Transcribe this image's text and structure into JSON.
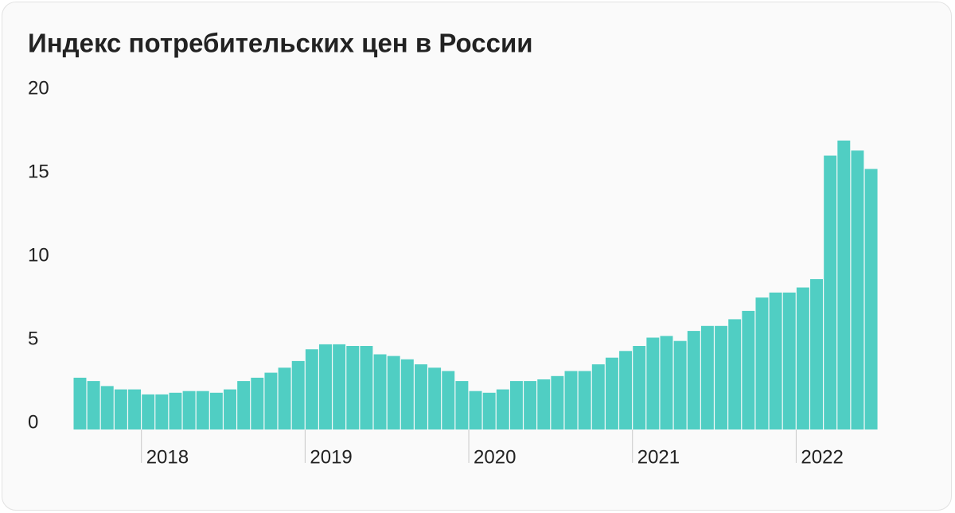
{
  "chart_data": {
    "type": "bar",
    "title": "Индекс потребительских цен в России",
    "categories": [
      null,
      null,
      null,
      null,
      null,
      "2018",
      null,
      null,
      null,
      null,
      null,
      null,
      null,
      null,
      null,
      null,
      null,
      "2019",
      null,
      null,
      null,
      null,
      null,
      null,
      null,
      null,
      null,
      null,
      null,
      "2020",
      null,
      null,
      null,
      null,
      null,
      null,
      null,
      null,
      null,
      null,
      null,
      "2021",
      null,
      null,
      null,
      null,
      null,
      null,
      null,
      null,
      null,
      null,
      null,
      "2022",
      null,
      null,
      null,
      null,
      null
    ],
    "values": [
      3.1,
      2.9,
      2.6,
      2.4,
      2.4,
      2.1,
      2.1,
      2.2,
      2.3,
      2.3,
      2.2,
      2.4,
      2.9,
      3.1,
      3.4,
      3.7,
      4.1,
      4.8,
      5.1,
      5.1,
      5.0,
      5.0,
      4.5,
      4.4,
      4.2,
      3.9,
      3.7,
      3.5,
      2.9,
      2.3,
      2.2,
      2.4,
      2.9,
      2.9,
      3.0,
      3.2,
      3.5,
      3.5,
      3.9,
      4.3,
      4.7,
      5.0,
      5.5,
      5.6,
      5.3,
      5.9,
      6.2,
      6.2,
      6.6,
      7.1,
      7.9,
      8.2,
      8.2,
      8.5,
      9.0,
      16.4,
      17.3,
      16.7,
      15.6
    ],
    "color": "#50cec3",
    "ylim": [
      0,
      20
    ],
    "yticks": [
      0,
      5,
      10,
      15,
      20
    ],
    "grid": false
  }
}
